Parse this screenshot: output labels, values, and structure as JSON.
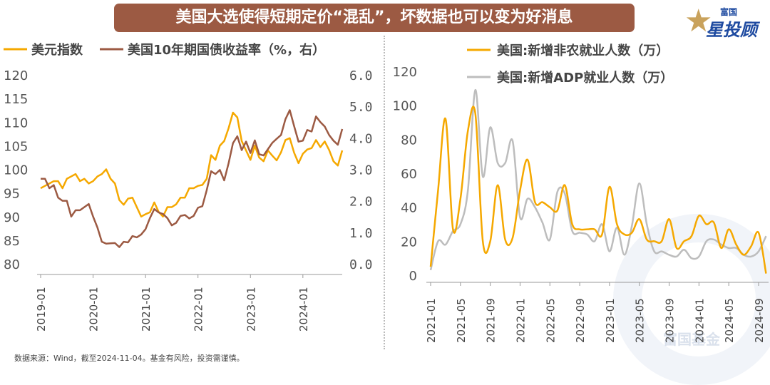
{
  "banner": {
    "title": "美国大选使得短期定价“混乱”，坏数据也可以变为好消息"
  },
  "logo": {
    "text_small": "富国",
    "text_large": "星投顾"
  },
  "footer": {
    "source": "数据来源：Wind，截至2024-11-04。基金有风险，投资需谨慎。"
  },
  "watermark": "富国基金",
  "chart_data": [
    {
      "type": "line",
      "title": "",
      "legend": [
        "美元指数",
        "美国10年期国债收益率（%，右）"
      ],
      "legend_placement": "top",
      "x_ticks": [
        "2019-01",
        "2020-01",
        "2021-01",
        "2022-01",
        "2023-01",
        "2024-01"
      ],
      "x_start": "2019-01",
      "x_end": "2024-10",
      "y_left": {
        "lim": [
          80,
          120
        ],
        "ticks": [
          "80",
          "85",
          "90",
          "95",
          "100",
          "105",
          "110",
          "115",
          "120"
        ]
      },
      "y_right": {
        "lim": [
          0,
          6
        ],
        "ticks": [
          "0.0",
          "1.0",
          "2.0",
          "3.0",
          "4.0",
          "5.0",
          "6.0"
        ]
      },
      "grid": false,
      "series": [
        {
          "name": "美元指数",
          "axis": "left",
          "color": "#f5a800",
          "values": [
            96,
            96.5,
            97,
            97.5,
            97.5,
            96,
            98,
            98.5,
            99,
            97.5,
            98,
            97,
            97.5,
            98.5,
            99,
            100,
            98,
            97,
            93.5,
            92.5,
            93.8,
            94,
            92,
            90,
            90.5,
            90.9,
            93,
            91,
            90,
            92,
            92,
            92.6,
            94,
            94,
            96,
            96,
            96.5,
            96.7,
            98,
            103,
            102,
            105,
            106,
            108.7,
            112,
            111,
            106,
            104,
            102,
            105,
            102.5,
            101.7,
            104,
            102.9,
            101.9,
            103.6,
            106.2,
            106.6,
            103.5,
            101.3,
            103.3,
            104.2,
            104.5,
            106.2,
            104.7,
            105.9,
            104.1,
            101.7,
            100.8,
            104
          ]
        },
        {
          "name": "美国10年期国债收益率（%，右）",
          "axis": "right",
          "color": "#9c5a43",
          "values": [
            2.7,
            2.7,
            2.4,
            2.5,
            2.1,
            2.0,
            2.0,
            1.5,
            1.7,
            1.7,
            1.8,
            1.9,
            1.5,
            1.15,
            0.7,
            0.64,
            0.65,
            0.66,
            0.53,
            0.7,
            0.68,
            0.88,
            0.84,
            0.93,
            1.1,
            1.45,
            1.74,
            1.63,
            1.58,
            1.45,
            1.22,
            1.3,
            1.52,
            1.55,
            1.44,
            1.52,
            1.78,
            1.83,
            2.34,
            2.94,
            2.85,
            2.98,
            2.65,
            3.19,
            3.83,
            4.05,
            3.61,
            3.88,
            3.52,
            3.92,
            3.48,
            3.44,
            3.64,
            3.84,
            3.97,
            4.09,
            4.59,
            4.88,
            4.37,
            3.88,
            3.91,
            4.25,
            4.2,
            4.68,
            4.5,
            4.36,
            4.09,
            3.91,
            3.78,
            4.28
          ]
        }
      ]
    },
    {
      "type": "line",
      "title": "",
      "legend": [
        "美国:新增非农就业人数（万）",
        "美国:新增ADP就业人数（万）"
      ],
      "legend_placement": "top",
      "x_ticks": [
        "2021-01",
        "2021-05",
        "2021-09",
        "2022-01",
        "2022-05",
        "2022-09",
        "2023-01",
        "2023-05",
        "2023-09",
        "2024-01",
        "2024-05",
        "2024-09"
      ],
      "x_start": "2021-01",
      "x_end": "2024-10",
      "y": {
        "lim": [
          0,
          120
        ],
        "ticks": [
          "0",
          "20",
          "40",
          "60",
          "80",
          "100",
          "120"
        ]
      },
      "grid": false,
      "series": [
        {
          "name": "美国:新增非农就业人数（万）",
          "color": "#f5a800",
          "values": [
            5,
            50,
            92,
            27,
            45,
            85,
            95,
            20,
            20,
            53,
            21,
            22,
            50,
            68,
            43,
            43,
            40,
            38,
            53,
            30,
            27,
            27,
            27,
            24,
            52,
            30,
            24,
            25,
            33,
            21,
            20,
            20,
            33,
            16,
            20,
            23,
            35,
            30,
            31,
            16,
            27,
            18,
            12,
            17,
            25,
            1
          ]
        },
        {
          "name": "美国:新增ADP就业人数（万）",
          "color": "#bdbdbd",
          "values": [
            3,
            20,
            18,
            26,
            30,
            50,
            109,
            58,
            87,
            66,
            66,
            79,
            34,
            45,
            40,
            31,
            21,
            49,
            48,
            26,
            25,
            24,
            20,
            30,
            14,
            28,
            12,
            29,
            54,
            30,
            14,
            14,
            12,
            11,
            15,
            10,
            11,
            20,
            21,
            18,
            16,
            16,
            12,
            11,
            14,
            23
          ]
        }
      ]
    }
  ]
}
